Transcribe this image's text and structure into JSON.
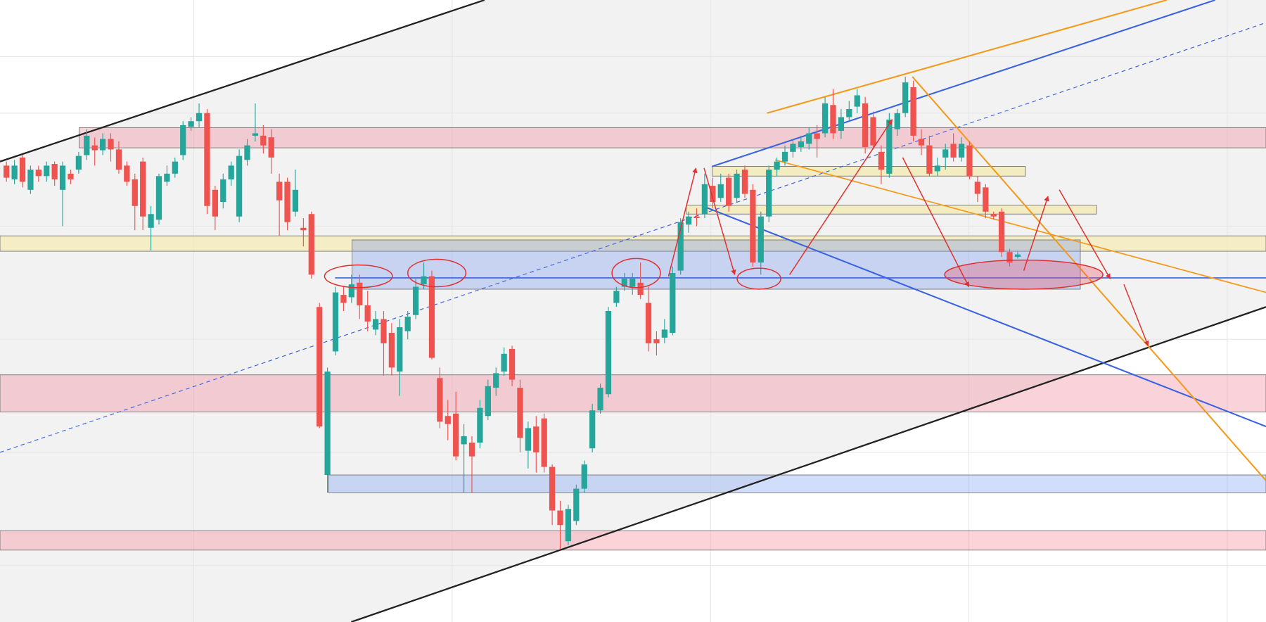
{
  "chart_data": {
    "type": "candlestick",
    "ylim": [
      0,
      770
    ],
    "up_color": "#26a69a",
    "down_color": "#ef5350",
    "ohlc": [
      [
        565,
        570,
        545,
        550
      ],
      [
        548,
        572,
        542,
        565
      ],
      [
        575,
        578,
        538,
        545
      ],
      [
        535,
        565,
        530,
        560
      ],
      [
        560,
        565,
        545,
        552
      ],
      [
        552,
        570,
        545,
        565
      ],
      [
        567,
        570,
        540,
        548
      ],
      [
        535,
        570,
        490,
        565
      ],
      [
        555,
        560,
        542,
        548
      ],
      [
        560,
        582,
        555,
        577
      ],
      [
        578,
        610,
        572,
        602
      ],
      [
        590,
        600,
        565,
        584
      ],
      [
        584,
        605,
        578,
        598
      ],
      [
        598,
        605,
        570,
        585
      ],
      [
        585,
        595,
        555,
        560
      ],
      [
        565,
        570,
        540,
        545
      ],
      [
        548,
        555,
        485,
        515
      ],
      [
        570,
        575,
        485,
        502
      ],
      [
        488,
        515,
        460,
        505
      ],
      [
        498,
        555,
        492,
        552
      ],
      [
        545,
        565,
        540,
        555
      ],
      [
        555,
        575,
        550,
        570
      ],
      [
        578,
        620,
        572,
        615
      ],
      [
        613,
        625,
        608,
        620
      ],
      [
        620,
        642,
        612,
        630
      ],
      [
        630,
        635,
        505,
        515
      ],
      [
        535,
        540,
        485,
        502
      ],
      [
        520,
        555,
        512,
        548
      ],
      [
        548,
        570,
        540,
        565
      ],
      [
        502,
        585,
        495,
        577
      ],
      [
        572,
        598,
        565,
        590
      ],
      [
        602,
        642,
        595,
        605
      ],
      [
        602,
        615,
        580,
        590
      ],
      [
        600,
        610,
        555,
        575
      ],
      [
        545,
        555,
        478,
        522
      ],
      [
        545,
        550,
        485,
        495
      ],
      [
        508,
        560,
        502,
        535
      ],
      [
        488,
        500,
        465,
        485
      ],
      [
        505,
        508,
        425,
        430
      ],
      [
        390,
        395,
        240,
        242
      ],
      [
        182,
        315,
        160,
        310
      ],
      [
        335,
        415,
        330,
        408
      ],
      [
        405,
        415,
        385,
        395
      ],
      [
        402,
        430,
        395,
        418
      ],
      [
        420,
        430,
        375,
        392
      ],
      [
        392,
        410,
        360,
        372
      ],
      [
        362,
        385,
        355,
        375
      ],
      [
        375,
        385,
        305,
        345
      ],
      [
        358,
        370,
        305,
        315
      ],
      [
        310,
        375,
        280,
        365
      ],
      [
        360,
        385,
        350,
        378
      ],
      [
        380,
        425,
        375,
        415
      ],
      [
        418,
        445,
        412,
        428
      ],
      [
        428,
        435,
        325,
        327
      ],
      [
        302,
        315,
        240,
        248
      ],
      [
        255,
        275,
        225,
        245
      ],
      [
        258,
        285,
        200,
        205
      ],
      [
        220,
        245,
        160,
        230
      ],
      [
        222,
        230,
        160,
        205
      ],
      [
        222,
        275,
        215,
        265
      ],
      [
        255,
        300,
        250,
        292
      ],
      [
        290,
        315,
        280,
        308
      ],
      [
        310,
        340,
        305,
        332
      ],
      [
        338,
        342,
        292,
        300
      ],
      [
        290,
        300,
        210,
        228
      ],
      [
        212,
        248,
        190,
        240
      ],
      [
        242,
        255,
        185,
        210
      ],
      [
        252,
        258,
        185,
        192
      ],
      [
        192,
        195,
        120,
        138
      ],
      [
        138,
        150,
        90,
        120
      ],
      [
        100,
        145,
        95,
        140
      ],
      [
        125,
        170,
        120,
        165
      ],
      [
        165,
        200,
        160,
        195
      ],
      [
        215,
        270,
        210,
        262
      ],
      [
        262,
        295,
        258,
        290
      ],
      [
        282,
        390,
        278,
        385
      ],
      [
        395,
        415,
        390,
        410
      ],
      [
        415,
        432,
        410,
        425
      ],
      [
        415,
        432,
        405,
        425
      ],
      [
        420,
        445,
        400,
        405
      ],
      [
        395,
        415,
        335,
        345
      ],
      [
        350,
        360,
        330,
        345
      ],
      [
        352,
        375,
        345,
        362
      ],
      [
        358,
        440,
        355,
        432
      ],
      [
        435,
        500,
        430,
        495
      ],
      [
        492,
        508,
        482,
        502
      ],
      [
        502,
        512,
        490,
        500
      ],
      [
        505,
        555,
        500,
        542
      ],
      [
        540,
        550,
        512,
        520
      ],
      [
        525,
        555,
        520,
        542
      ],
      [
        550,
        555,
        508,
        515
      ],
      [
        525,
        560,
        520,
        555
      ],
      [
        560,
        565,
        525,
        530
      ],
      [
        535,
        542,
        440,
        445
      ],
      [
        445,
        508,
        430,
        502
      ],
      [
        502,
        565,
        495,
        560
      ],
      [
        560,
        575,
        552,
        570
      ],
      [
        570,
        590,
        565,
        582
      ],
      [
        582,
        598,
        575,
        592
      ],
      [
        588,
        602,
        582,
        595
      ],
      [
        592,
        612,
        585,
        605
      ],
      [
        605,
        615,
        575,
        598
      ],
      [
        605,
        650,
        600,
        642
      ],
      [
        640,
        660,
        598,
        605
      ],
      [
        608,
        635,
        598,
        625
      ],
      [
        625,
        645,
        620,
        635
      ],
      [
        638,
        660,
        630,
        652
      ],
      [
        642,
        650,
        580,
        588
      ],
      [
        625,
        632,
        585,
        590
      ],
      [
        582,
        590,
        542,
        560
      ],
      [
        555,
        630,
        550,
        622
      ],
      [
        610,
        635,
        602,
        630
      ],
      [
        630,
        675,
        625,
        668
      ],
      [
        662,
        670,
        595,
        602
      ],
      [
        598,
        610,
        578,
        590
      ],
      [
        590,
        602,
        552,
        555
      ],
      [
        558,
        575,
        552,
        565
      ],
      [
        575,
        592,
        560,
        585
      ],
      [
        592,
        605,
        570,
        575
      ],
      [
        575,
        600,
        570,
        592
      ],
      [
        590,
        595,
        548,
        552
      ],
      [
        545,
        552,
        520,
        530
      ],
      [
        538,
        542,
        500,
        508
      ],
      [
        505,
        508,
        498,
        502
      ],
      [
        508,
        512,
        452,
        458
      ],
      [
        458,
        462,
        440,
        445
      ],
      [
        452,
        458,
        450,
        455
      ]
    ]
  }
}
